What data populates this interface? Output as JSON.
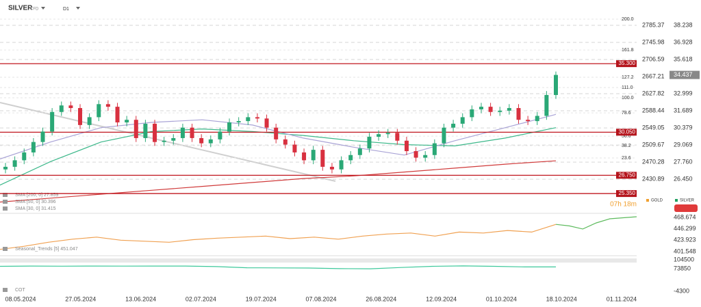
{
  "header": {
    "symbol": "SILVER",
    "instrument_type": "CFD",
    "timeframe": "D1"
  },
  "chart_data": [
    {
      "type": "candlestick",
      "up_color": "#2aa876",
      "down_color": "#d8303f",
      "open": [
        27.2,
        27.4,
        27.9,
        28.5,
        29.3,
        30.1,
        31.6,
        32.1,
        31.9,
        30.6,
        31.2,
        32.2,
        32.0,
        30.8,
        31.0,
        29.6,
        30.7,
        29.3,
        29.4,
        29.6,
        30.4,
        29.6,
        29.2,
        29.5,
        30.1,
        30.8,
        30.9,
        31.2,
        31.1,
        30.4,
        29.5,
        29.1,
        28.5,
        27.9,
        28.7,
        27.4,
        27.2,
        27.9,
        28.3,
        28.8,
        29.7,
        29.9,
        30.0,
        29.4,
        28.6,
        28.1,
        28.3,
        29.2,
        30.4,
        30.7,
        31.2,
        31.8,
        32.0,
        31.6,
        31.7,
        31.9,
        31.0,
        30.9,
        31.3,
        32.9
      ],
      "high": [
        27.7,
        28.2,
        28.8,
        29.6,
        30.4,
        31.9,
        32.4,
        32.4,
        32.2,
        31.5,
        32.5,
        32.5,
        32.3,
        31.3,
        31.3,
        31.0,
        31.0,
        29.7,
        29.9,
        30.7,
        30.7,
        29.9,
        29.8,
        30.4,
        31.1,
        31.2,
        31.5,
        31.5,
        31.4,
        30.7,
        29.8,
        29.4,
        28.8,
        29.0,
        29.0,
        27.7,
        28.2,
        28.6,
        29.1,
        30.0,
        30.2,
        30.3,
        30.3,
        29.7,
        28.9,
        28.6,
        29.5,
        30.7,
        31.0,
        31.5,
        32.1,
        32.3,
        32.3,
        32.0,
        32.2,
        32.2,
        31.3,
        31.6,
        33.2,
        34.7
      ],
      "low": [
        26.9,
        27.1,
        27.6,
        28.2,
        29.0,
        29.8,
        31.3,
        31.6,
        30.3,
        30.3,
        30.9,
        31.7,
        30.5,
        30.5,
        29.3,
        29.3,
        29.0,
        29.0,
        29.1,
        29.3,
        29.3,
        28.9,
        28.9,
        29.2,
        29.8,
        30.5,
        30.6,
        30.8,
        30.1,
        29.2,
        28.8,
        28.2,
        27.6,
        27.6,
        27.1,
        26.9,
        26.9,
        27.6,
        28.0,
        28.5,
        29.4,
        29.6,
        29.1,
        28.3,
        27.8,
        27.8,
        28.0,
        28.9,
        30.1,
        30.4,
        30.9,
        31.5,
        31.3,
        31.3,
        31.4,
        30.7,
        30.6,
        30.6,
        31.0,
        32.6
      ],
      "close": [
        27.4,
        27.9,
        28.5,
        29.3,
        30.1,
        31.6,
        32.1,
        31.9,
        30.6,
        31.2,
        32.2,
        32.0,
        30.8,
        31.0,
        29.6,
        30.7,
        29.3,
        29.4,
        29.6,
        30.4,
        29.6,
        29.2,
        29.5,
        30.1,
        30.8,
        30.9,
        31.2,
        31.1,
        30.4,
        29.5,
        29.1,
        28.5,
        27.9,
        28.7,
        27.4,
        27.2,
        27.9,
        28.3,
        28.8,
        29.7,
        29.9,
        30.0,
        29.4,
        28.6,
        28.1,
        28.3,
        29.2,
        30.4,
        30.7,
        31.2,
        31.8,
        32.0,
        31.6,
        31.7,
        31.9,
        31.0,
        30.9,
        31.3,
        32.9,
        34.437
      ],
      "ylim": [
        23.94,
        39.13
      ],
      "yticks": [
        38.238,
        36.928,
        35.618,
        32.999,
        31.689,
        30.379,
        29.069,
        {
          "value": 27.76,
          "label": "27.760"
        },
        {
          "value": 26.45,
          "label": "26.450"
        }
      ],
      "y2lim": [
        2355.26,
        2812.16
      ],
      "y2ticks": [
        2785.37,
        2745.98,
        2706.59,
        2667.21,
        2627.82,
        2588.44,
        2549.05,
        2509.67,
        2470.28,
        2430.89
      ],
      "levels": [
        {
          "value": 35.3,
          "label": "35.300"
        },
        {
          "value": 30.05,
          "label": "30.050"
        },
        {
          "value": 26.75,
          "label": "26.750"
        },
        {
          "value": 25.35,
          "label": "25.350"
        }
      ],
      "fib_levels": [
        {
          "value": 38.71,
          "label": "200.0"
        },
        {
          "value": 36.35,
          "label": "161.8"
        },
        {
          "value": 34.26,
          "label": "127.2"
        },
        {
          "value": 33.47,
          "label": "111.0"
        },
        {
          "value": 32.69,
          "label": "100.0"
        },
        {
          "value": 31.53,
          "label": "78.6"
        },
        {
          "value": 29.75,
          "label": "50.0"
        },
        {
          "value": 29.02,
          "label": "38.2"
        },
        {
          "value": 28.08,
          "label": "23.6"
        }
      ],
      "series": [
        {
          "name": "SMA [200, 0] 27.859",
          "color": "#d03a3a",
          "values": [
            24.7,
            25.0,
            25.3,
            25.6,
            25.9,
            26.2,
            26.5,
            26.7,
            27.0,
            27.3,
            27.6,
            27.859
          ]
        },
        {
          "name": "SMA [50, 0] 30.396",
          "color": "#3cb88a",
          "values": [
            26.0,
            27.8,
            29.3,
            30.1,
            30.3,
            30.1,
            29.8,
            29.4,
            29.1,
            29.0,
            29.6,
            30.396
          ]
        },
        {
          "name": "SMA [30, 0] 31.415",
          "color": "#a9a3d6",
          "values": [
            28.0,
            29.3,
            30.4,
            30.8,
            31.0,
            30.6,
            29.6,
            28.9,
            28.3,
            29.4,
            30.4,
            31.415
          ]
        }
      ],
      "legend": [
        {
          "name": "GOLD",
          "color": "#f0a030"
        },
        {
          "name": "SILVER",
          "color": "#20a060"
        }
      ],
      "countdown": "07h 18m",
      "x_labels": [
        "08.05.2024",
        "27.05.2024",
        "13.06.2024",
        "02.07.2024",
        "19.07.2024",
        "07.08.2024",
        "26.08.2024",
        "12.09.2024",
        "01.10.2024",
        "18.10.2024",
        "01.11.2024"
      ]
    },
    {
      "type": "line",
      "title": "Seasonal_Trends [5] 451.047",
      "ylim": [
        396.18,
        476.73
      ],
      "yticks": [
        468.674,
        446.299,
        423.923,
        401.548
      ],
      "series": [
        {
          "color": "#f0a050",
          "values": [
            406,
            412,
            420,
            426,
            430,
            424,
            422,
            420,
            425,
            428,
            430,
            432,
            427,
            430,
            426,
            432,
            436,
            438,
            432,
            440,
            438,
            443,
            440,
            455
          ]
        },
        {
          "color": "#5cba5c",
          "values": [
            455,
            452,
            446,
            458,
            466,
            468,
            470
          ]
        }
      ]
    },
    {
      "type": "line",
      "title": "COT",
      "ylim": [
        -18448,
        113932
      ],
      "yticks": [
        104500,
        73850,
        -4300
      ],
      "series": [
        {
          "color": "#3cc89a",
          "values": [
            82000,
            83000,
            82500,
            83000,
            82800,
            83000,
            82900,
            81000,
            77000,
            76500,
            76000,
            74000,
            73500,
            78000,
            82000,
            83500,
            82000,
            80000,
            80000
          ]
        }
      ]
    }
  ]
}
